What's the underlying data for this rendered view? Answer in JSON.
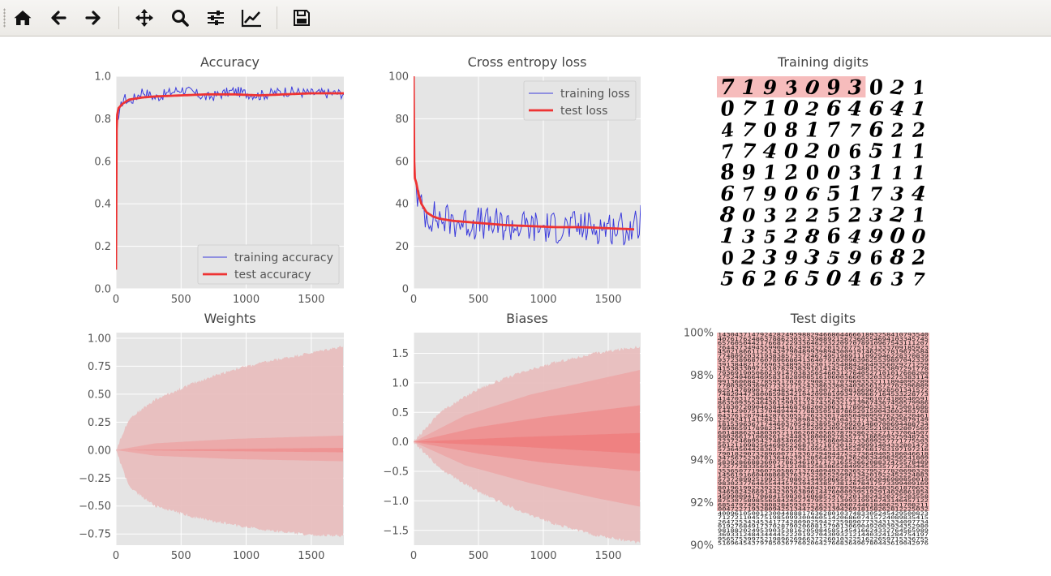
{
  "toolbar": {
    "buttons": [
      {
        "name": "home-button",
        "icon": "home-icon"
      },
      {
        "name": "back-button",
        "icon": "arrow-left-icon"
      },
      {
        "name": "forward-button",
        "icon": "arrow-right-icon"
      },
      {
        "name": "pan-button",
        "icon": "move-icon"
      },
      {
        "name": "zoom-button",
        "icon": "search-icon"
      },
      {
        "name": "configure-subplots-button",
        "icon": "sliders-icon"
      },
      {
        "name": "edit-axes-button",
        "icon": "chart-line-icon"
      },
      {
        "name": "save-button",
        "icon": "floppy-disk-icon"
      }
    ]
  },
  "colors": {
    "axes_bg": "#e5e5e5",
    "grid": "#ffffff",
    "training": "#3b3bdc",
    "test": "#ee3333",
    "band_light": "#e8bbbb",
    "band_mid": "#ef9b9b",
    "band_dark": "#f08080",
    "highlight": "#f6bcbc"
  },
  "chart_data": [
    {
      "type": "line",
      "title": "Accuracy",
      "xlim": [
        0,
        1750
      ],
      "ylim": [
        0.0,
        1.0
      ],
      "xticks": [
        "0",
        "500",
        "1000",
        "1500"
      ],
      "yticks": [
        "0.0",
        "0.2",
        "0.4",
        "0.6",
        "0.8",
        "1.0"
      ],
      "legend": "lower-right",
      "series": [
        {
          "name": "training accuracy",
          "style": "thin-noisy",
          "x": [
            0,
            10,
            20,
            40,
            60,
            100,
            150,
            200,
            300,
            400,
            500,
            700,
            900,
            1100,
            1300,
            1500,
            1750
          ],
          "y": [
            0.09,
            0.79,
            0.8,
            0.86,
            0.9,
            0.88,
            0.9,
            0.93,
            0.9,
            0.92,
            0.94,
            0.9,
            0.93,
            0.91,
            0.93,
            0.92,
            0.92
          ],
          "noise": 0.025
        },
        {
          "name": "test accuracy",
          "style": "thick",
          "x": [
            0,
            5,
            10,
            20,
            50,
            100,
            200,
            300,
            500,
            700,
            900,
            1100,
            1300,
            1500,
            1750
          ],
          "y": [
            0.09,
            0.75,
            0.82,
            0.85,
            0.87,
            0.89,
            0.9,
            0.905,
            0.91,
            0.915,
            0.915,
            0.91,
            0.915,
            0.92,
            0.92
          ]
        }
      ]
    },
    {
      "type": "line",
      "title": "Cross entropy loss",
      "xlim": [
        0,
        1750
      ],
      "ylim": [
        0,
        100
      ],
      "xticks": [
        "0",
        "500",
        "1000",
        "1500"
      ],
      "yticks": [
        "0",
        "20",
        "40",
        "60",
        "80",
        "100"
      ],
      "legend": "upper-right",
      "series": [
        {
          "name": "training loss",
          "style": "thin-noisy",
          "x": [
            0,
            10,
            30,
            60,
            100,
            150,
            200,
            300,
            400,
            500,
            600,
            700,
            900,
            1100,
            1300,
            1500,
            1700,
            1750
          ],
          "y": [
            100,
            53,
            44,
            38,
            35,
            34,
            33,
            32,
            31,
            31,
            30,
            30,
            29,
            29,
            29,
            29,
            28,
            32
          ],
          "noise": 8
        },
        {
          "name": "test loss",
          "style": "thick",
          "x": [
            0,
            5,
            10,
            20,
            40,
            60,
            100,
            150,
            200,
            300,
            500,
            700,
            900,
            1100,
            1300,
            1500,
            1700
          ],
          "y": [
            100,
            60,
            52,
            50,
            44,
            40,
            36,
            34,
            33,
            32,
            31,
            30,
            29.5,
            29,
            29,
            28.5,
            28
          ]
        }
      ]
    },
    {
      "type": "table",
      "title": "Training digits",
      "rows": [
        "7193093021",
        "0710264641",
        "4708177622",
        "7740206511",
        "8912003111",
        "6790651734",
        "8032252321",
        "1352864900",
        "0239359682",
        "5626504637"
      ],
      "highlighted_cells_row0": 7
    },
    {
      "type": "area",
      "title": "Weights",
      "xlim": [
        0,
        1750
      ],
      "ylim": [
        -0.85,
        1.05
      ],
      "xticks": [
        "0",
        "500",
        "1000",
        "1500"
      ],
      "yticks": [
        "−0.75",
        "−0.50",
        "−0.25",
        "0.00",
        "0.25",
        "0.50",
        "0.75",
        "1.00"
      ],
      "bands": [
        {
          "shade": "light",
          "x": [
            0,
            100,
            300,
            600,
            900,
            1200,
            1500,
            1750
          ],
          "upper": [
            0.0,
            0.28,
            0.45,
            0.6,
            0.72,
            0.8,
            0.87,
            0.93
          ],
          "lower": [
            0.0,
            -0.33,
            -0.5,
            -0.6,
            -0.67,
            -0.72,
            -0.76,
            -0.77
          ]
        },
        {
          "shade": "mid",
          "x": [
            0,
            300,
            900,
            1750
          ],
          "upper": [
            0.0,
            0.06,
            0.1,
            0.13
          ],
          "lower": [
            0.0,
            -0.05,
            -0.08,
            -0.1
          ]
        },
        {
          "shade": "dark",
          "x": [
            0,
            1750
          ],
          "upper": [
            0.0,
            0.02
          ],
          "lower": [
            0.0,
            -0.02
          ]
        }
      ]
    },
    {
      "type": "area",
      "title": "Biases",
      "xlim": [
        0,
        1750
      ],
      "ylim": [
        -1.75,
        1.85
      ],
      "xticks": [
        "0",
        "500",
        "1000",
        "1500"
      ],
      "yticks": [
        "−1.5",
        "−1.0",
        "−0.5",
        "0.0",
        "0.5",
        "1.0",
        "1.5"
      ],
      "bands": [
        {
          "shade": "light",
          "x": [
            0,
            200,
            500,
            800,
            1100,
            1400,
            1750
          ],
          "upper": [
            0.0,
            0.5,
            0.9,
            1.15,
            1.35,
            1.5,
            1.62
          ],
          "lower": [
            0.0,
            -0.45,
            -0.85,
            -1.15,
            -1.4,
            -1.58,
            -1.72
          ]
        },
        {
          "shade": "mid",
          "x": [
            0,
            400,
            900,
            1400,
            1750
          ],
          "upper": [
            0.0,
            0.45,
            0.8,
            1.05,
            1.22
          ],
          "lower": [
            0.0,
            -0.4,
            -0.7,
            -0.95,
            -1.1
          ]
        },
        {
          "shade": "dark",
          "x": [
            0,
            500,
            1000,
            1750
          ],
          "upper": [
            0.0,
            0.25,
            0.42,
            0.62
          ],
          "lower": [
            0.0,
            -0.2,
            -0.35,
            -0.5
          ]
        },
        {
          "shade": "darkest",
          "x": [
            0,
            800,
            1750
          ],
          "upper": [
            0.0,
            0.08,
            0.15
          ],
          "lower": [
            0.0,
            -0.08,
            -0.2
          ]
        }
      ]
    },
    {
      "type": "table",
      "title": "Test digits",
      "yticks": [
        "100%",
        "98%",
        "96%",
        "94%",
        "92%",
        "90%"
      ],
      "ylim": [
        90,
        100
      ],
      "highlighted_down_to_percent": 91.6,
      "grid_rows": 50,
      "grid_cols": 50
    }
  ]
}
